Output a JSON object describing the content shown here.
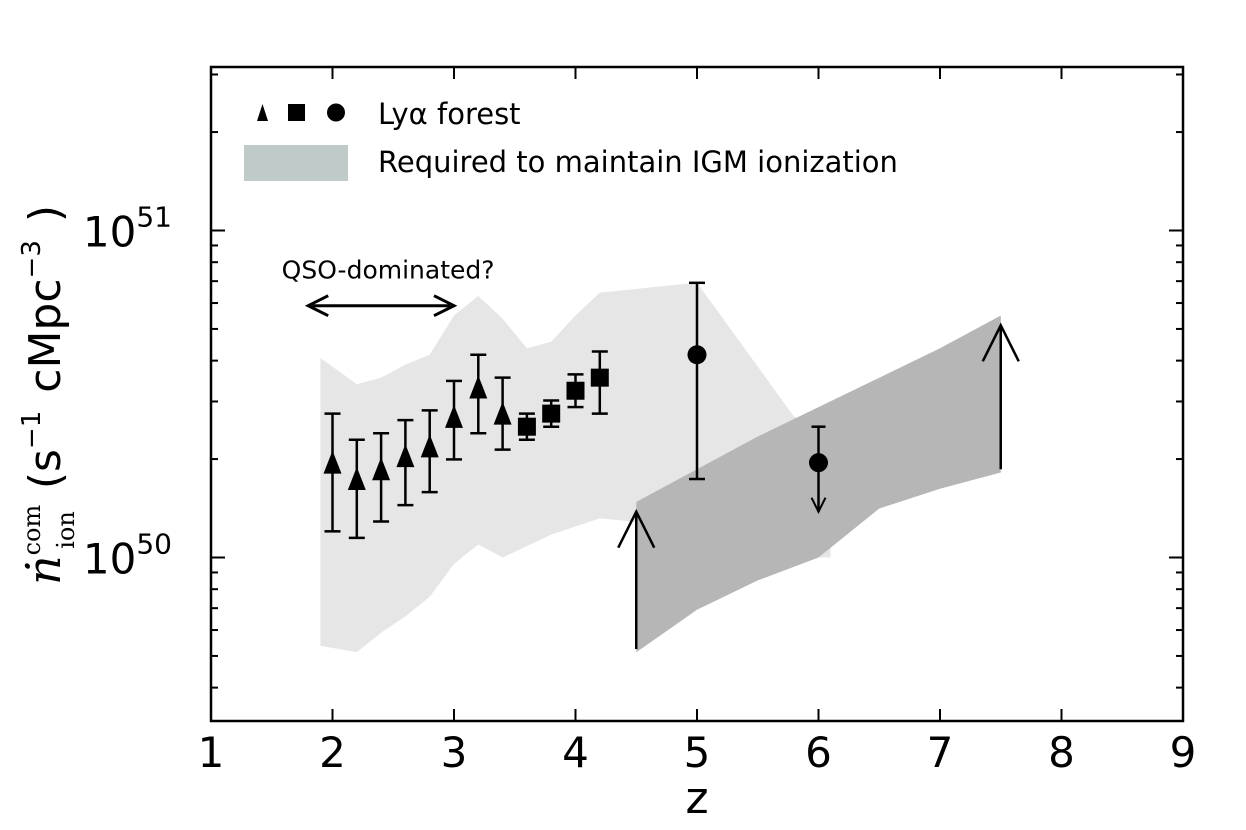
{
  "chart_data": {
    "type": "scatter",
    "xlabel": "z",
    "ylabel": {
      "symbol_main": "ṅ",
      "symbol_sup": "com",
      "symbol_sub": "ion",
      "units_open": "(s",
      "units_sup1": "−1",
      "units_mid": "cMpc",
      "units_sup2": "−3",
      "units_close": ")"
    },
    "yscale": "log",
    "xlim": [
      1,
      9
    ],
    "ylim_log10": [
      49.5,
      51.5
    ],
    "x_ticks": [
      {
        "value": 1,
        "label": "1"
      },
      {
        "value": 2,
        "label": "2"
      },
      {
        "value": 3,
        "label": "3"
      },
      {
        "value": 4,
        "label": "4"
      },
      {
        "value": 5,
        "label": "5"
      },
      {
        "value": 6,
        "label": "6"
      },
      {
        "value": 7,
        "label": "7"
      },
      {
        "value": 8,
        "label": "8"
      },
      {
        "value": 9,
        "label": "9"
      }
    ],
    "y_ticks": [
      {
        "log10": 50,
        "base": "10",
        "exp": "50"
      },
      {
        "log10": 51,
        "base": "10",
        "exp": "51"
      }
    ],
    "legend": {
      "position": "top-left",
      "entries": [
        {
          "label": "Lyα forest",
          "style": "markers"
        },
        {
          "label": "Required to maintain IGM ionization",
          "style": "band",
          "color": "#c0cac8"
        }
      ]
    },
    "annotations": [
      {
        "text": "QSO-dominated?",
        "arrow_from_z": 1.8,
        "arrow_to_z": 3.0,
        "y_log10": 50.77
      }
    ],
    "series": [
      {
        "name": "Lyα forest (triangles)",
        "marker": "triangle",
        "points": [
          {
            "z": 2.0,
            "y": 50.29,
            "lo": 50.08,
            "hi": 50.44
          },
          {
            "z": 2.2,
            "y": 50.24,
            "lo": 50.06,
            "hi": 50.36
          },
          {
            "z": 2.4,
            "y": 50.27,
            "lo": 50.11,
            "hi": 50.38
          },
          {
            "z": 2.6,
            "y": 50.31,
            "lo": 50.16,
            "hi": 50.42
          },
          {
            "z": 2.8,
            "y": 50.34,
            "lo": 50.2,
            "hi": 50.45
          },
          {
            "z": 3.0,
            "y": 50.43,
            "lo": 50.3,
            "hi": 50.54
          },
          {
            "z": 3.2,
            "y": 50.52,
            "lo": 50.38,
            "hi": 50.62
          },
          {
            "z": 3.4,
            "y": 50.44,
            "lo": 50.33,
            "hi": 50.55
          }
        ]
      },
      {
        "name": "Lyα forest (squares)",
        "marker": "square",
        "points": [
          {
            "z": 3.6,
            "y": 50.4,
            "lo": 50.36,
            "hi": 50.44
          },
          {
            "z": 3.8,
            "y": 50.44,
            "lo": 50.4,
            "hi": 50.48
          },
          {
            "z": 4.0,
            "y": 50.51,
            "lo": 50.46,
            "hi": 50.56
          },
          {
            "z": 4.2,
            "y": 50.55,
            "lo": 50.44,
            "hi": 50.63
          }
        ]
      },
      {
        "name": "Lyα forest (circles)",
        "marker": "circle",
        "points": [
          {
            "z": 5.0,
            "y": 50.62,
            "lo": 50.24,
            "hi": 50.84
          },
          {
            "z": 6.0,
            "y": 50.29,
            "hi": 50.4,
            "upper_limit": true,
            "arrow_to": 50.14
          }
        ]
      }
    ],
    "bands": [
      {
        "name": "Lyα forest uncertainty region",
        "color": "#e6e6e6",
        "upper": [
          [
            1.9,
            50.61
          ],
          [
            2.2,
            50.53
          ],
          [
            2.4,
            50.55
          ],
          [
            2.6,
            50.59
          ],
          [
            2.8,
            50.62
          ],
          [
            3.0,
            50.74
          ],
          [
            3.2,
            50.8
          ],
          [
            3.4,
            50.73
          ],
          [
            3.6,
            50.64
          ],
          [
            3.8,
            50.66
          ],
          [
            4.0,
            50.74
          ],
          [
            4.2,
            50.81
          ],
          [
            5.0,
            50.84
          ],
          [
            5.8,
            50.43
          ],
          [
            6.1,
            50.41
          ]
        ],
        "lower": [
          [
            6.1,
            50.0
          ],
          [
            5.8,
            50.0
          ],
          [
            5.0,
            50.09
          ],
          [
            4.2,
            50.12
          ],
          [
            3.8,
            50.07
          ],
          [
            3.4,
            50.0
          ],
          [
            3.2,
            50.04
          ],
          [
            3.0,
            49.98
          ],
          [
            2.8,
            49.88
          ],
          [
            2.6,
            49.82
          ],
          [
            2.4,
            49.77
          ],
          [
            2.2,
            49.71
          ],
          [
            1.9,
            49.73
          ]
        ]
      },
      {
        "name": "Required to maintain IGM ionization (lower limits)",
        "color": "#b6b6b6",
        "upper": [
          [
            4.5,
            50.17
          ],
          [
            5.0,
            50.27
          ],
          [
            5.5,
            50.37
          ],
          [
            6.0,
            50.46
          ],
          [
            6.5,
            50.55
          ],
          [
            7.0,
            50.64
          ],
          [
            7.5,
            50.74
          ]
        ],
        "lower": [
          [
            7.5,
            50.26
          ],
          [
            7.0,
            50.21
          ],
          [
            6.5,
            50.15
          ],
          [
            6.0,
            50.0
          ],
          [
            5.5,
            49.93
          ],
          [
            5.0,
            49.84
          ],
          [
            4.5,
            49.71
          ]
        ],
        "limit_arrows": [
          {
            "z": 4.5,
            "from": 49.72,
            "to": 50.14
          },
          {
            "z": 7.5,
            "from": 50.27,
            "to": 50.71
          }
        ]
      }
    ]
  }
}
